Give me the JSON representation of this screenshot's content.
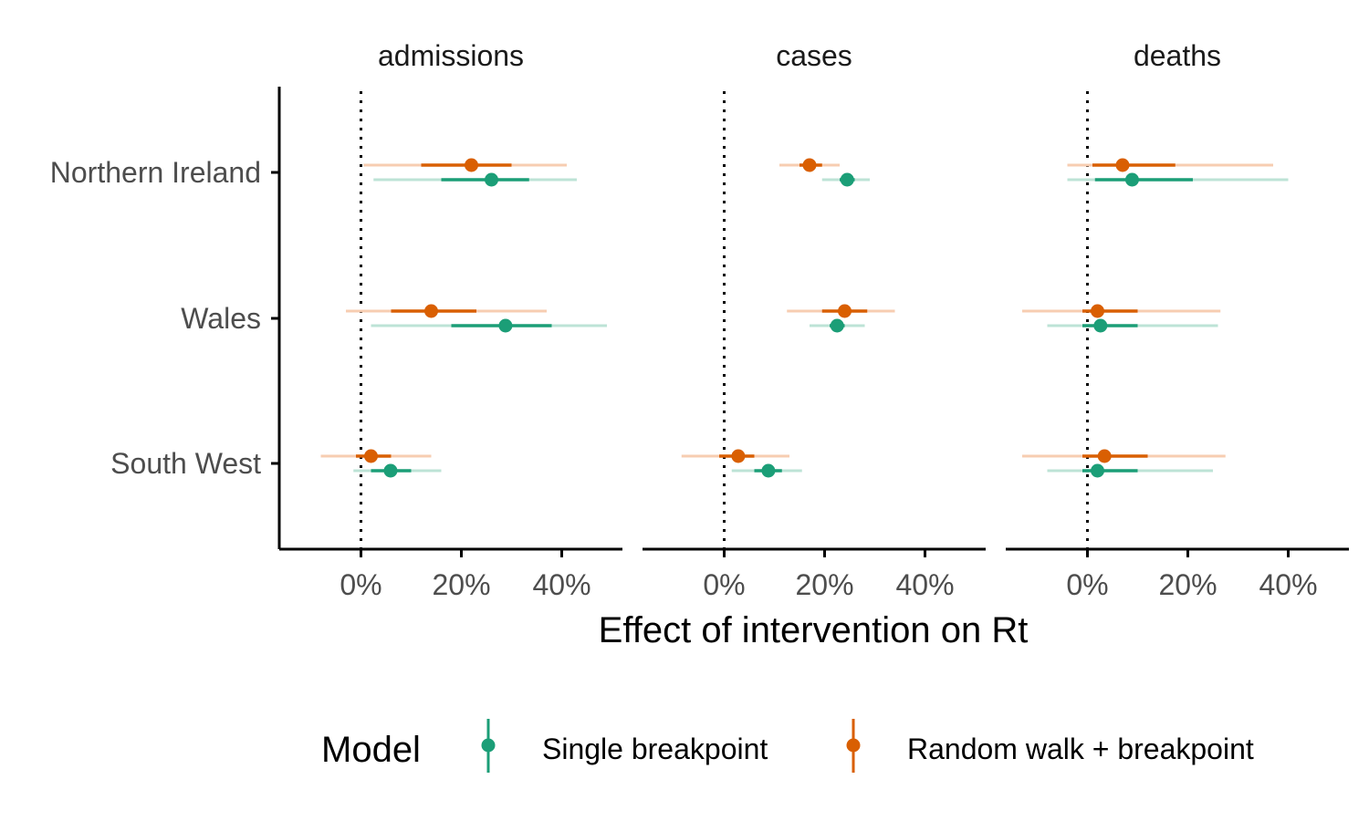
{
  "chart_data": {
    "type": "forest",
    "facets": [
      "admissions",
      "cases",
      "deaths"
    ],
    "categories": [
      "Northern Ireland",
      "Wales",
      "South West"
    ],
    "xlabel": "Effect of intervention on Rt",
    "ylabel": "",
    "x_ticks": [
      0,
      20,
      40
    ],
    "x_tick_labels": [
      "0%",
      "20%",
      "40%"
    ],
    "xlim": [
      -16,
      52
    ],
    "reference_line": 0,
    "grid": false,
    "legend": {
      "title": "Model",
      "position": "bottom",
      "entries": [
        "Single breakpoint",
        "Random walk + breakpoint"
      ]
    },
    "series": [
      {
        "name": "Single breakpoint",
        "color": "#1b9e77",
        "light_color": "#bde3d6",
        "data": {
          "admissions": [
            {
              "region": "Northern Ireland",
              "median": 26,
              "inner": [
                16,
                33.5
              ],
              "outer": [
                2.5,
                43
              ]
            },
            {
              "region": "Wales",
              "median": 28.8,
              "inner": [
                18,
                38
              ],
              "outer": [
                2,
                49
              ]
            },
            {
              "region": "South West",
              "median": 5.9,
              "inner": [
                2,
                10
              ],
              "outer": [
                -1.5,
                16
              ]
            }
          ],
          "cases": [
            {
              "region": "Northern Ireland",
              "median": 24.5,
              "inner": [
                23,
                26
              ],
              "outer": [
                19.5,
                29
              ]
            },
            {
              "region": "Wales",
              "median": 22.5,
              "inner": [
                21,
                24
              ],
              "outer": [
                17,
                28
              ]
            },
            {
              "region": "South West",
              "median": 8.8,
              "inner": [
                6,
                11.5
              ],
              "outer": [
                1.5,
                15.5
              ]
            }
          ],
          "deaths": [
            {
              "region": "Northern Ireland",
              "median": 8.9,
              "inner": [
                1.5,
                21
              ],
              "outer": [
                -4,
                40
              ]
            },
            {
              "region": "Wales",
              "median": 2.6,
              "inner": [
                -1,
                10
              ],
              "outer": [
                -8,
                26
              ]
            },
            {
              "region": "South West",
              "median": 2,
              "inner": [
                -1,
                10
              ],
              "outer": [
                -8,
                25
              ]
            }
          ]
        }
      },
      {
        "name": "Random walk + breakpoint",
        "color": "#d95f02",
        "light_color": "#f7cdb1",
        "data": {
          "admissions": [
            {
              "region": "Northern Ireland",
              "median": 22,
              "inner": [
                12,
                30
              ],
              "outer": [
                0.5,
                41
              ]
            },
            {
              "region": "Wales",
              "median": 14,
              "inner": [
                6,
                23
              ],
              "outer": [
                -3,
                37
              ]
            },
            {
              "region": "South West",
              "median": 2,
              "inner": [
                -1,
                6
              ],
              "outer": [
                -8,
                14
              ]
            }
          ],
          "cases": [
            {
              "region": "Northern Ireland",
              "median": 17,
              "inner": [
                15,
                19.5
              ],
              "outer": [
                11,
                23
              ]
            },
            {
              "region": "Wales",
              "median": 24,
              "inner": [
                19.5,
                28.5
              ],
              "outer": [
                12.5,
                34
              ]
            },
            {
              "region": "South West",
              "median": 2.8,
              "inner": [
                -1,
                6
              ],
              "outer": [
                -8.5,
                13
              ]
            }
          ],
          "deaths": [
            {
              "region": "Northern Ireland",
              "median": 7,
              "inner": [
                1,
                17.5
              ],
              "outer": [
                -4,
                37
              ]
            },
            {
              "region": "Wales",
              "median": 2,
              "inner": [
                -1,
                10
              ],
              "outer": [
                -13,
                26.5
              ]
            },
            {
              "region": "South West",
              "median": 3.4,
              "inner": [
                -1,
                12
              ],
              "outer": [
                -13,
                27.5
              ]
            }
          ]
        }
      }
    ]
  }
}
